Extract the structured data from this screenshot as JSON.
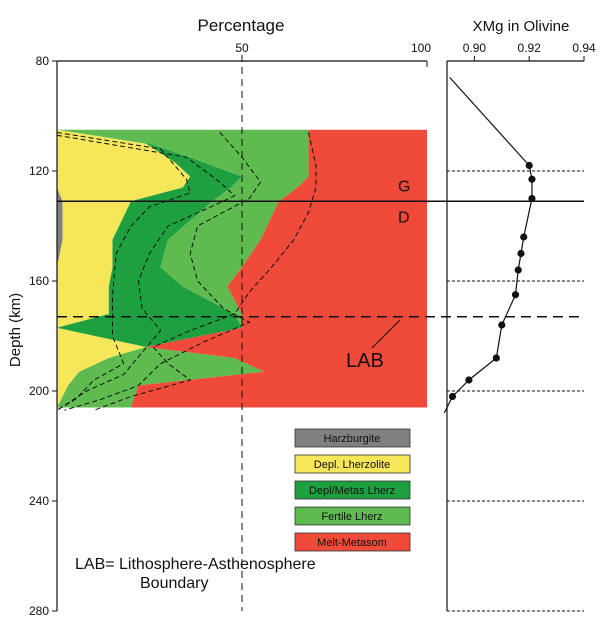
{
  "chart_data": [
    {
      "type": "area",
      "title": "Percentage",
      "xlabel": "Percentage",
      "ylabel": "Depth (km)",
      "x_ticks": [
        "50",
        "100"
      ],
      "y_ticks": [
        "80",
        "120",
        "160",
        "200",
        "240",
        "280"
      ],
      "xlim": [
        0,
        100
      ],
      "ylim": [
        80,
        280
      ],
      "y_reversed": true,
      "colors": {
        "Harzburgite": "#808080",
        "Depl. Lherzolite": "#f5e65a",
        "Depl/Metas Lherz": "#1fa040",
        "Fertile Lherz": "#5fbb50",
        "Melt-Metasom": "#ef4a3a"
      },
      "depths": [
        105,
        110,
        117,
        122,
        126,
        131,
        145,
        155,
        162,
        172,
        177,
        184,
        188,
        193,
        198,
        206
      ],
      "series": [
        {
          "name": "Harzburgite",
          "cumulative": [
            0,
            0,
            0,
            0,
            0,
            1.5,
            1.5,
            0,
            0,
            0,
            0,
            0,
            0,
            0,
            0,
            0
          ]
        },
        {
          "name": "Depl. Lherzolite",
          "cumulative": [
            0,
            24,
            32,
            36,
            34,
            20,
            15,
            15,
            14,
            14,
            0,
            24,
            14,
            6,
            3,
            0
          ]
        },
        {
          "name": "Depl/Metas Lherz",
          "cumulative": [
            0,
            25,
            40,
            50,
            47,
            42,
            30,
            28,
            34,
            48,
            50,
            0,
            0,
            0,
            0,
            0
          ]
        },
        {
          "name": "Fertile Lherz",
          "cumulative": [
            68,
            68,
            68,
            68,
            65,
            60,
            55,
            50,
            46,
            50,
            37,
            22,
            48,
            56,
            22,
            20
          ]
        },
        {
          "name": "Melt-Metasom",
          "cumulative": [
            100,
            100,
            100,
            100,
            100,
            100,
            100,
            100,
            100,
            100,
            100,
            100,
            100,
            100,
            100,
            100
          ]
        }
      ],
      "dashed_lines": [
        {
          "points": [
            [
              0,
              106
            ],
            [
              28,
              112
            ],
            [
              35,
              123
            ],
            [
              36,
              128
            ],
            [
              25,
              133
            ],
            [
              20,
              140
            ],
            [
              16,
              150
            ],
            [
              15,
              165
            ],
            [
              15,
              180
            ],
            [
              18,
              190
            ],
            [
              10,
              196
            ],
            [
              5,
              203
            ],
            [
              0,
              207
            ]
          ]
        },
        {
          "points": [
            [
              0,
              107
            ],
            [
              35,
              115
            ],
            [
              44,
              124
            ],
            [
              48,
              129
            ],
            [
              40,
              134
            ],
            [
              30,
              140
            ],
            [
              25,
              150
            ],
            [
              22,
              160
            ],
            [
              23,
              170
            ],
            [
              28,
              178
            ],
            [
              23,
              186
            ],
            [
              18,
              194
            ],
            [
              8,
              200
            ],
            [
              0,
              207
            ]
          ]
        },
        {
          "points": [
            [
              44,
              106
            ],
            [
              50,
              115
            ],
            [
              55,
              124
            ],
            [
              52,
              130
            ],
            [
              38,
              140
            ],
            [
              36,
              150
            ],
            [
              38,
              160
            ],
            [
              45,
              170
            ],
            [
              52,
              175
            ],
            [
              40,
              182
            ],
            [
              28,
              190
            ],
            [
              22,
              198
            ],
            [
              12,
              203
            ],
            [
              2,
              207
            ]
          ]
        },
        {
          "points": [
            [
              68,
              106
            ],
            [
              70,
              118
            ],
            [
              70,
              126
            ],
            [
              68,
              135
            ],
            [
              64,
              145
            ],
            [
              58,
              155
            ],
            [
              52,
              164
            ],
            [
              48,
              172
            ],
            [
              36,
              178
            ],
            [
              26,
              184
            ],
            [
              30,
              190
            ],
            [
              36,
              196
            ],
            [
              20,
              202
            ],
            [
              10,
              207
            ]
          ]
        }
      ],
      "annotations": [
        "G",
        "D",
        "LAB",
        "LAB= Lithosphere-Asthenosphere",
        "Boundary"
      ],
      "horizontal_lines": [
        {
          "label": "G/D",
          "depth": 131,
          "style": "solid"
        },
        {
          "label": "LAB",
          "depth": 173,
          "style": "dashed"
        }
      ],
      "vertical_dashed_line_at": 50,
      "legend_position": "bottom-right",
      "grid": false
    },
    {
      "type": "line",
      "title": "XMg in Olivine",
      "xlabel": "XMg in Olivine",
      "ylabel": "",
      "x_ticks": [
        "0.90",
        "0.92",
        "0.94"
      ],
      "xlim": [
        0.89,
        0.94
      ],
      "ylim": [
        80,
        280
      ],
      "y_reversed": true,
      "points": [
        {
          "x": 0.92,
          "y": 118
        },
        {
          "x": 0.921,
          "y": 123
        },
        {
          "x": 0.921,
          "y": 130
        },
        {
          "x": 0.918,
          "y": 144
        },
        {
          "x": 0.917,
          "y": 150
        },
        {
          "x": 0.916,
          "y": 156
        },
        {
          "x": 0.915,
          "y": 165
        },
        {
          "x": 0.91,
          "y": 176
        },
        {
          "x": 0.908,
          "y": 188
        },
        {
          "x": 0.898,
          "y": 196
        },
        {
          "x": 0.892,
          "y": 202
        }
      ],
      "line_top": {
        "x": 0.891,
        "y": 86
      },
      "line_bottom": {
        "x": 0.889,
        "y": 208
      },
      "dotted_depths": [
        120,
        160,
        200,
        240,
        280
      ],
      "grid": false
    }
  ],
  "legend": [
    {
      "label": "Harzburgite",
      "color": "#808080"
    },
    {
      "label": "Depl. Lherzolite",
      "color": "#f5e65a"
    },
    {
      "label": "Depl/Metas Lherz",
      "color": "#1fa040"
    },
    {
      "label": "Fertile Lherz",
      "color": "#5fbb50"
    },
    {
      "label": "Melt-Metasom",
      "color": "#ef4a3a"
    }
  ]
}
